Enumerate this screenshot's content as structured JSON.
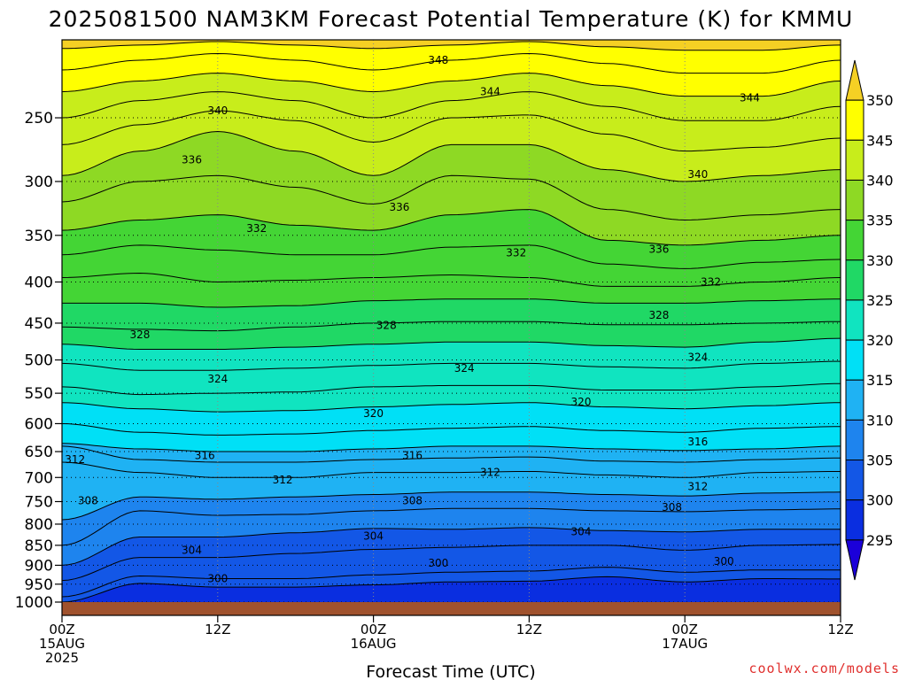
{
  "title": "2025081500 NAM3KM Forecast Potential Temperature (K) for KMMU",
  "credit": "coolwx.com/models",
  "chart_data": {
    "type": "heatmap",
    "title": "2025081500 NAM3KM Forecast Potential Temperature (K) for KMMU",
    "xlabel": "Forecast Time (UTC)",
    "ylabel": "",
    "x_range_hours": [
      0,
      60
    ],
    "x_ticks": [
      {
        "hour": 0,
        "labels": [
          "00Z",
          "15AUG",
          "2025"
        ]
      },
      {
        "hour": 12,
        "labels": [
          "12Z"
        ]
      },
      {
        "hour": 24,
        "labels": [
          "00Z",
          "16AUG"
        ]
      },
      {
        "hour": 36,
        "labels": [
          "12Z"
        ]
      },
      {
        "hour": 48,
        "labels": [
          "00Z",
          "17AUG"
        ]
      },
      {
        "hour": 60,
        "labels": [
          "12Z"
        ]
      }
    ],
    "y_axis": "pressure_hPa",
    "y_scale": "log",
    "y_range": [
      1000,
      200
    ],
    "y_ticks": [
      250,
      300,
      350,
      400,
      450,
      500,
      550,
      600,
      650,
      700,
      750,
      800,
      850,
      900,
      950,
      1000
    ],
    "grid": true,
    "colorbar": {
      "levels": [
        295,
        300,
        305,
        310,
        315,
        320,
        325,
        330,
        335,
        340,
        345,
        350
      ],
      "colors": [
        "#1b00d9",
        "#0a2ee0",
        "#1357e6",
        "#1e84ee",
        "#1fb2f3",
        "#00e0f6",
        "#10e4c0",
        "#20d865",
        "#44d535",
        "#8ed924",
        "#c8ed1b",
        "#ffff00",
        "#f5d024"
      ]
    },
    "contour_interval": 4,
    "contour_label_values": [
      300,
      304,
      308,
      312,
      316,
      320,
      324,
      328,
      332,
      336,
      340,
      344,
      348
    ],
    "hours": [
      0,
      6,
      12,
      18,
      24,
      30,
      36,
      42,
      48,
      54,
      60
    ],
    "theta_levels": [
      {
        "theta": 300,
        "p_hPa": [
          1000,
          948,
          958,
          958,
          952,
          944,
          942,
          930,
          944,
          935,
          936
        ]
      },
      {
        "theta": 302,
        "p_hPa": [
          985,
          928,
          935,
          935,
          925,
          918,
          915,
          905,
          918,
          912,
          912
        ]
      },
      {
        "theta": 304,
        "p_hPa": [
          940,
          880,
          880,
          870,
          860,
          855,
          850,
          850,
          862,
          850,
          848
        ]
      },
      {
        "theta": 306,
        "p_hPa": [
          900,
          830,
          830,
          820,
          810,
          812,
          808,
          815,
          818,
          812,
          812
        ]
      },
      {
        "theta": 308,
        "p_hPa": [
          850,
          770,
          780,
          778,
          770,
          765,
          765,
          770,
          772,
          768,
          766
        ]
      },
      {
        "theta": 310,
        "p_hPa": [
          790,
          740,
          745,
          740,
          735,
          730,
          730,
          735,
          738,
          732,
          730
        ]
      },
      {
        "theta": 312,
        "p_hPa": [
          670,
          690,
          700,
          700,
          690,
          690,
          688,
          695,
          700,
          690,
          688
        ]
      },
      {
        "theta": 314,
        "p_hPa": [
          640,
          665,
          670,
          670,
          665,
          662,
          660,
          668,
          670,
          665,
          662
        ]
      },
      {
        "theta": 316,
        "p_hPa": [
          635,
          645,
          650,
          650,
          645,
          640,
          640,
          645,
          648,
          645,
          640
        ]
      },
      {
        "theta": 318,
        "p_hPa": [
          600,
          615,
          620,
          618,
          612,
          608,
          605,
          612,
          615,
          608,
          605
        ]
      },
      {
        "theta": 320,
        "p_hPa": [
          565,
          575,
          580,
          578,
          572,
          568,
          565,
          572,
          575,
          570,
          565
        ]
      },
      {
        "theta": 322,
        "p_hPa": [
          540,
          552,
          550,
          548,
          540,
          538,
          538,
          545,
          545,
          540,
          535
        ]
      },
      {
        "theta": 324,
        "p_hPa": [
          505,
          515,
          515,
          512,
          508,
          505,
          505,
          510,
          512,
          505,
          502
        ]
      },
      {
        "theta": 326,
        "p_hPa": [
          478,
          485,
          485,
          482,
          478,
          475,
          475,
          480,
          482,
          475,
          470
        ]
      },
      {
        "theta": 328,
        "p_hPa": [
          455,
          458,
          460,
          455,
          450,
          448,
          448,
          452,
          452,
          450,
          448
        ]
      },
      {
        "theta": 330,
        "p_hPa": [
          425,
          425,
          430,
          428,
          422,
          420,
          420,
          425,
          425,
          422,
          420
        ]
      },
      {
        "theta": 332,
        "p_hPa": [
          395,
          390,
          400,
          398,
          395,
          392,
          395,
          405,
          405,
          400,
          395
        ]
      },
      {
        "theta": 334,
        "p_hPa": [
          370,
          360,
          365,
          370,
          370,
          362,
          360,
          380,
          385,
          378,
          375
        ]
      },
      {
        "theta": 336,
        "p_hPa": [
          345,
          335,
          330,
          340,
          345,
          330,
          325,
          355,
          360,
          355,
          350
        ]
      },
      {
        "theta": 338,
        "p_hPa": [
          318,
          300,
          295,
          305,
          320,
          295,
          298,
          325,
          335,
          330,
          325
        ]
      },
      {
        "theta": 340,
        "p_hPa": [
          295,
          275,
          260,
          275,
          295,
          270,
          270,
          290,
          300,
          295,
          290
        ]
      },
      {
        "theta": 342,
        "p_hPa": [
          270,
          255,
          245,
          252,
          268,
          250,
          248,
          262,
          275,
          272,
          265
        ]
      },
      {
        "theta": 344,
        "p_hPa": [
          250,
          238,
          232,
          238,
          250,
          238,
          232,
          242,
          252,
          252,
          242
        ]
      },
      {
        "theta": 346,
        "p_hPa": [
          232,
          225,
          220,
          225,
          232,
          225,
          220,
          228,
          235,
          235,
          225
        ]
      },
      {
        "theta": 348,
        "p_hPa": [
          218,
          212,
          208,
          212,
          218,
          212,
          208,
          214,
          220,
          220,
          212
        ]
      },
      {
        "theta": 350,
        "p_hPa": [
          205,
          203,
          201,
          203,
          205,
          203,
          201,
          204,
          206,
          206,
          203
        ]
      }
    ],
    "contour_labels": [
      {
        "text": "348",
        "hour": 29,
        "p_hPa": 212
      },
      {
        "text": "340",
        "hour": 12,
        "p_hPa": 245
      },
      {
        "text": "344",
        "hour": 33,
        "p_hPa": 232
      },
      {
        "text": "344",
        "hour": 53,
        "p_hPa": 236
      },
      {
        "text": "336",
        "hour": 10,
        "p_hPa": 282
      },
      {
        "text": "340",
        "hour": 49,
        "p_hPa": 294
      },
      {
        "text": "336",
        "hour": 26,
        "p_hPa": 323
      },
      {
        "text": "332",
        "hour": 15,
        "p_hPa": 343
      },
      {
        "text": "332",
        "hour": 35,
        "p_hPa": 368
      },
      {
        "text": "336",
        "hour": 46,
        "p_hPa": 364
      },
      {
        "text": "332",
        "hour": 50,
        "p_hPa": 400
      },
      {
        "text": "328",
        "hour": 6,
        "p_hPa": 465
      },
      {
        "text": "328",
        "hour": 25,
        "p_hPa": 453
      },
      {
        "text": "328",
        "hour": 46,
        "p_hPa": 440
      },
      {
        "text": "324",
        "hour": 12,
        "p_hPa": 528
      },
      {
        "text": "324",
        "hour": 31,
        "p_hPa": 512
      },
      {
        "text": "324",
        "hour": 49,
        "p_hPa": 496
      },
      {
        "text": "320",
        "hour": 24,
        "p_hPa": 583
      },
      {
        "text": "320",
        "hour": 40,
        "p_hPa": 564
      },
      {
        "text": "316",
        "hour": 49,
        "p_hPa": 632
      },
      {
        "text": "316",
        "hour": 11,
        "p_hPa": 657
      },
      {
        "text": "316",
        "hour": 27,
        "p_hPa": 657
      },
      {
        "text": "312",
        "hour": 1,
        "p_hPa": 665
      },
      {
        "text": "312",
        "hour": 17,
        "p_hPa": 705
      },
      {
        "text": "312",
        "hour": 33,
        "p_hPa": 690
      },
      {
        "text": "312",
        "hour": 49,
        "p_hPa": 718
      },
      {
        "text": "308",
        "hour": 2,
        "p_hPa": 748
      },
      {
        "text": "308",
        "hour": 27,
        "p_hPa": 748
      },
      {
        "text": "308",
        "hour": 47,
        "p_hPa": 762
      },
      {
        "text": "304",
        "hour": 10,
        "p_hPa": 862
      },
      {
        "text": "304",
        "hour": 24,
        "p_hPa": 828
      },
      {
        "text": "304",
        "hour": 40,
        "p_hPa": 818
      },
      {
        "text": "300",
        "hour": 29,
        "p_hPa": 895
      },
      {
        "text": "300",
        "hour": 12,
        "p_hPa": 935
      },
      {
        "text": "300",
        "hour": 51,
        "p_hPa": 890
      }
    ],
    "ground": {
      "color": "#a0522d"
    }
  }
}
